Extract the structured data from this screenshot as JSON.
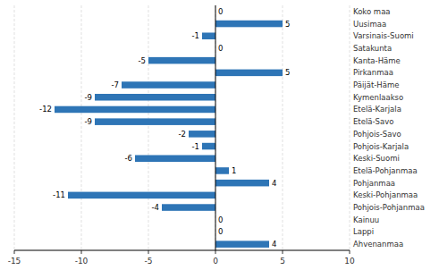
{
  "chart_data": {
    "type": "bar",
    "orientation": "horizontal",
    "categories": [
      "Koko maa",
      "Uusimaa",
      "Varsinais-Suomi",
      "Satakunta",
      "Kanta-Häme",
      "Pirkanmaa",
      "Päijät-Häme",
      "Kymenlaakso",
      "Etelä-Karjala",
      "Etelä-Savo",
      "Pohjois-Savo",
      "Pohjois-Karjala",
      "Keski-Suomi",
      "Etelä-Pohjanmaa",
      "Pohjanmaa",
      "Keski-Pohjanmaa",
      "Pohjois-Pohjanmaa",
      "Kainuu",
      "Lappi",
      "Ahvenanmaa"
    ],
    "values": [
      0,
      5,
      -1,
      0,
      -5,
      5,
      -7,
      -9,
      -12,
      -9,
      -2,
      -1,
      -6,
      1,
      4,
      -11,
      -4,
      0,
      0,
      4
    ],
    "color": "#2E75B6",
    "xlim": [
      -15,
      10
    ],
    "xticks": [
      -15,
      -10,
      -5,
      0,
      5,
      10
    ],
    "grid": true,
    "data_labels": true
  }
}
